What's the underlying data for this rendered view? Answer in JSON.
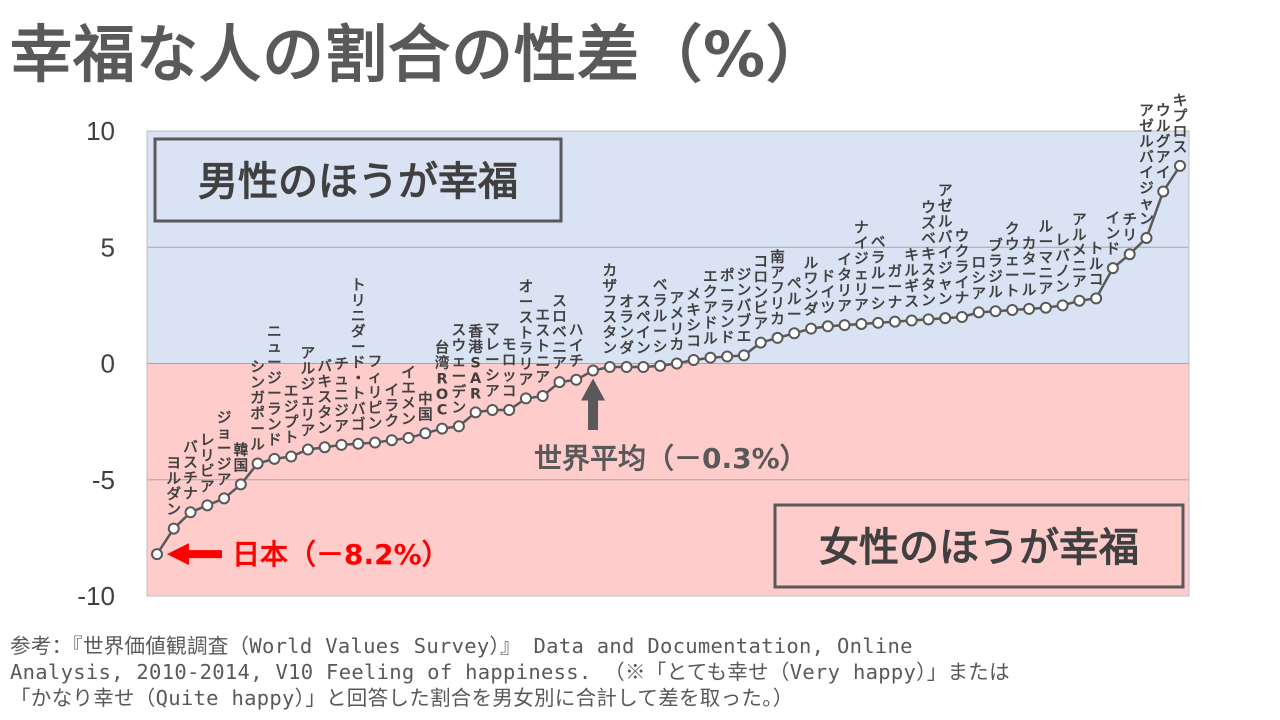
{
  "title": "幸福な人の割合の性差（%）",
  "footnote": {
    "line1": "参考：『世界価値観調査（World Values Survey）』 Data and Documentation, Online",
    "line2": "Analysis, 2010-2014, V10 Feeling of happiness. （※「とても幸せ（Very happy）」または",
    "line3": "「かなり幸せ（Quite happy）」と回答した割合を男女別に合計して差を取った。）"
  },
  "chart_data": {
    "type": "line",
    "ylim": [
      -10,
      10
    ],
    "yticks": [
      "10",
      "5",
      "0",
      "-5",
      "-10"
    ],
    "regions": [
      {
        "label": "男性のほうが幸福",
        "from": 0,
        "to": 10,
        "color": "#dae3f3"
      },
      {
        "label": "女性のほうが幸福",
        "from": -10,
        "to": 0,
        "color": "#ffcccc"
      }
    ],
    "annotations": {
      "japan": "日本（－8.2%）",
      "world": "世界平均（－0.3%）"
    },
    "points": [
      {
        "label": "",
        "value": -8.2
      },
      {
        "label": "ヨルダン",
        "value": -7.1
      },
      {
        "label": "バスチナ",
        "value": -6.4
      },
      {
        "label": "レリビア",
        "value": -6.1
      },
      {
        "label": "ジョージア",
        "value": -5.8
      },
      {
        "label": "韓国",
        "value": -5.2
      },
      {
        "label": "シンガポール",
        "value": -4.3
      },
      {
        "label": "ニュージーランド",
        "value": -4.1
      },
      {
        "label": "エジプト",
        "value": -4.0
      },
      {
        "label": "アルジェリア",
        "value": -3.7
      },
      {
        "label": "バキスタン",
        "value": -3.6
      },
      {
        "label": "チュニジア",
        "value": -3.5
      },
      {
        "label": "トリニダード・トバゴ",
        "value": -3.45
      },
      {
        "label": "フィリピン",
        "value": -3.4
      },
      {
        "label": "イラク",
        "value": -3.3
      },
      {
        "label": "イエメン",
        "value": -3.2
      },
      {
        "label": "中国",
        "value": -3.0
      },
      {
        "label": "台湾ROC",
        "value": -2.8
      },
      {
        "label": "スウェーデン",
        "value": -2.7
      },
      {
        "label": "香港SAR",
        "value": -2.1
      },
      {
        "label": "マレーシア",
        "value": -2.0
      },
      {
        "label": "モロッコ",
        "value": -2.0
      },
      {
        "label": "オーストラリア",
        "value": -1.5
      },
      {
        "label": "エストニア",
        "value": -1.4
      },
      {
        "label": "スロベニア",
        "value": -0.8
      },
      {
        "label": "ハイチ",
        "value": -0.7
      },
      {
        "label": "",
        "value": -0.3
      },
      {
        "label": "カザフスタン",
        "value": -0.15
      },
      {
        "label": "オランダ",
        "value": -0.15
      },
      {
        "label": "スペイン",
        "value": -0.15
      },
      {
        "label": "ベラルーシ",
        "value": -0.1
      },
      {
        "label": "アメリカ",
        "value": 0.0
      },
      {
        "label": "メキシコ",
        "value": 0.15
      },
      {
        "label": "エクアドル",
        "value": 0.25
      },
      {
        "label": "ポーランド",
        "value": 0.3
      },
      {
        "label": "ジンバブエ",
        "value": 0.35
      },
      {
        "label": "コロンビア",
        "value": 0.9
      },
      {
        "label": "南アフリカ",
        "value": 1.1
      },
      {
        "label": "ペルー",
        "value": 1.3
      },
      {
        "label": "ルワンダ",
        "value": 1.5
      },
      {
        "label": "ドイツ",
        "value": 1.6
      },
      {
        "label": "イタリア",
        "value": 1.65
      },
      {
        "label": "ナイジェリア",
        "value": 1.7
      },
      {
        "label": "ベラルーシ",
        "value": 1.75
      },
      {
        "label": "ガーナ",
        "value": 1.8
      },
      {
        "label": "キルギス",
        "value": 1.85
      },
      {
        "label": "ウズベキスタン",
        "value": 1.9
      },
      {
        "label": "アゼルバイジャン",
        "value": 1.95
      },
      {
        "label": "ウクライナ",
        "value": 2.0
      },
      {
        "label": "ロシア",
        "value": 2.2
      },
      {
        "label": "ブラジル",
        "value": 2.25
      },
      {
        "label": "クウェート",
        "value": 2.3
      },
      {
        "label": "カタール",
        "value": 2.35
      },
      {
        "label": "ルーマニア",
        "value": 2.4
      },
      {
        "label": "レバノン",
        "value": 2.5
      },
      {
        "label": "アルメニア",
        "value": 2.7
      },
      {
        "label": "トルコ",
        "value": 2.8
      },
      {
        "label": "インド",
        "value": 4.1
      },
      {
        "label": "チリ",
        "value": 4.7
      },
      {
        "label": "アゼルバイジャン",
        "value": 5.4
      },
      {
        "label": "ウルグアイ",
        "value": 7.4
      },
      {
        "label": "キプロス",
        "value": 8.5
      }
    ]
  }
}
